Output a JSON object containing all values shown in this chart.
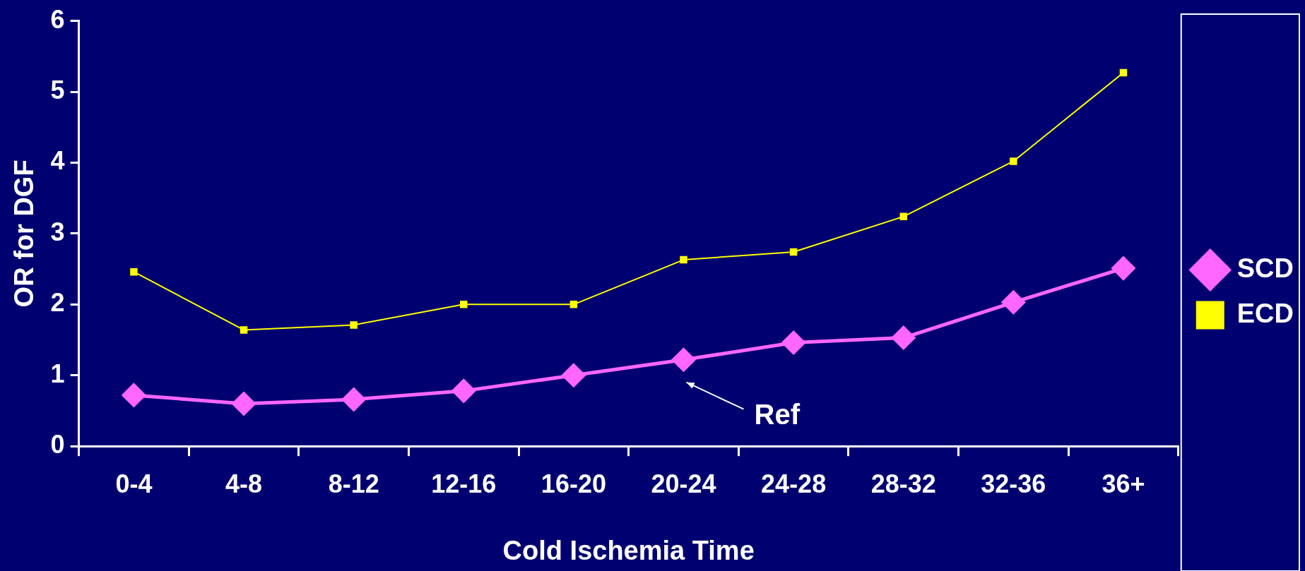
{
  "chart_data": {
    "type": "line",
    "xlabel": "Cold Ischemia Time",
    "ylabel": "OR for DGF",
    "categories": [
      "0-4",
      "4-8",
      "8-12",
      "12-16",
      "16-20",
      "20-24",
      "24-28",
      "28-32",
      "32-36",
      "36+"
    ],
    "series": [
      {
        "name": "SCD",
        "color": "#ff66ff",
        "marker": "diamond",
        "values": [
          0.72,
          0.6,
          0.66,
          0.78,
          1.0,
          1.22,
          1.46,
          1.53,
          2.03,
          2.51
        ]
      },
      {
        "name": "ECD",
        "color": "#ffff00",
        "marker": "square",
        "values": [
          2.46,
          1.64,
          1.71,
          2.0,
          2.0,
          2.63,
          2.74,
          3.24,
          4.02,
          5.27
        ]
      }
    ],
    "ylim": [
      0,
      6
    ],
    "yticks": [
      0,
      1,
      2,
      3,
      4,
      5,
      6
    ],
    "grid": false,
    "legend": "right",
    "annotations": [
      {
        "text": "Ref",
        "x": "20-24",
        "y": 1.22
      }
    ]
  }
}
